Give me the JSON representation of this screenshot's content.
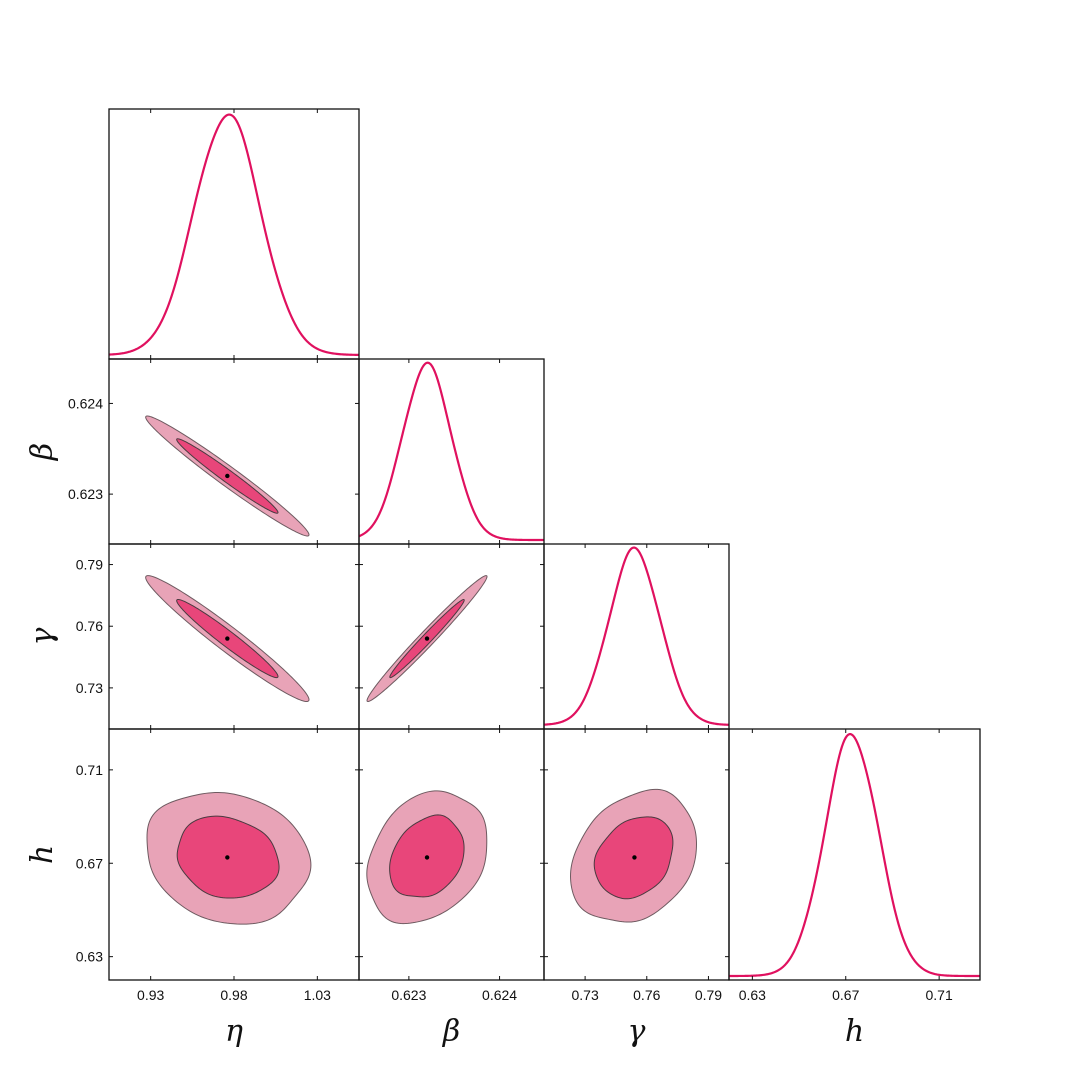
{
  "chart_data": {
    "type": "corner",
    "parameters": [
      {
        "symbol": "η",
        "mean": 0.976,
        "std": 0.02,
        "range": [
          0.905,
          1.055
        ],
        "ticks": [
          0.93,
          0.98,
          1.03
        ],
        "tick_labels": [
          "0.93",
          "0.98",
          "1.03"
        ]
      },
      {
        "symbol": "β",
        "mean": 0.6232,
        "std": 0.00027,
        "range": [
          0.62245,
          0.62449
        ],
        "ticks": [
          0.623,
          0.624
        ],
        "tick_labels": [
          "0.623",
          "0.624"
        ]
      },
      {
        "symbol": "γ",
        "mean": 0.754,
        "std": 0.0125,
        "range": [
          0.71,
          0.8
        ],
        "ticks": [
          0.73,
          0.76,
          0.79
        ],
        "tick_labels": [
          "0.73",
          "0.76",
          "0.79"
        ]
      },
      {
        "symbol": "h",
        "mean": 0.6725,
        "std": 0.0115,
        "range": [
          0.62,
          0.7275
        ],
        "ticks": [
          0.63,
          0.67,
          0.71
        ],
        "tick_labels": [
          "0.63",
          "0.67",
          "0.71"
        ]
      }
    ],
    "correlations": [
      {
        "pair": [
          "η",
          "β"
        ],
        "rho": -0.98
      },
      {
        "pair": [
          "η",
          "γ"
        ],
        "rho": -0.97
      },
      {
        "pair": [
          "β",
          "γ"
        ],
        "rho": 0.985
      },
      {
        "pair": [
          "η",
          "h"
        ],
        "rho": -0.15
      },
      {
        "pair": [
          "β",
          "h"
        ],
        "rho": 0.25
      },
      {
        "pair": [
          "γ",
          "h"
        ],
        "rho": 0.25
      }
    ],
    "contour_levels": [
      "68%",
      "95%"
    ],
    "colors": {
      "line": "#e0115f",
      "inner_fill": "#e8467a",
      "outer_fill": "#e8a3b7",
      "best_fit_point": "#000000"
    }
  }
}
